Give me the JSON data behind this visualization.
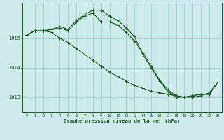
{
  "bg_color": "#ceeaea",
  "grid_color": "#9ed4d4",
  "line_color": "#1a5c1a",
  "ylim": [
    1012.5,
    1016.2
  ],
  "yticks": [
    1013,
    1014,
    1015
  ],
  "xticks": [
    0,
    1,
    2,
    3,
    4,
    5,
    6,
    7,
    8,
    9,
    10,
    11,
    12,
    13,
    14,
    15,
    16,
    17,
    18,
    19,
    20,
    21,
    22,
    23
  ],
  "xlabel": "Graphe pression niveau de la mer (hPa)",
  "series1_x": [
    0,
    1,
    2,
    3,
    4,
    5,
    6,
    7,
    8,
    9,
    10,
    11,
    12,
    13,
    14,
    15,
    16,
    17,
    18,
    19,
    20,
    21,
    22,
    23
  ],
  "series1_y": [
    1015.1,
    1015.25,
    1015.25,
    1015.2,
    1015.0,
    1014.85,
    1014.65,
    1014.45,
    1014.25,
    1014.05,
    1013.85,
    1013.7,
    1013.55,
    1013.4,
    1013.3,
    1013.2,
    1013.15,
    1013.1,
    1013.05,
    1013.0,
    1013.05,
    1013.1,
    1013.1,
    1013.5
  ],
  "series2_x": [
    0,
    1,
    2,
    3,
    4,
    5,
    6,
    7,
    8,
    9,
    10,
    11,
    12,
    13,
    14,
    15,
    16,
    17,
    18,
    19,
    20,
    21,
    22,
    23
  ],
  "series2_y": [
    1015.1,
    1015.25,
    1015.25,
    1015.3,
    1015.35,
    1015.25,
    1015.55,
    1015.75,
    1015.85,
    1015.55,
    1015.55,
    1015.45,
    1015.2,
    1014.9,
    1014.5,
    1014.05,
    1013.6,
    1013.25,
    1013.05,
    1013.0,
    1013.05,
    1013.1,
    1013.1,
    1013.5
  ],
  "series3_x": [
    0,
    1,
    2,
    3,
    4,
    5,
    6,
    7,
    8,
    9,
    10,
    11,
    12,
    13,
    14,
    15,
    16,
    17,
    18,
    19,
    20,
    21,
    22,
    23
  ],
  "series3_y": [
    1015.1,
    1015.25,
    1015.25,
    1015.3,
    1015.4,
    1015.3,
    1015.6,
    1015.8,
    1015.95,
    1015.95,
    1015.75,
    1015.6,
    1015.35,
    1015.05,
    1014.45,
    1014.0,
    1013.55,
    1013.2,
    1013.0,
    1013.0,
    1013.0,
    1013.05,
    1013.15,
    1013.5
  ]
}
